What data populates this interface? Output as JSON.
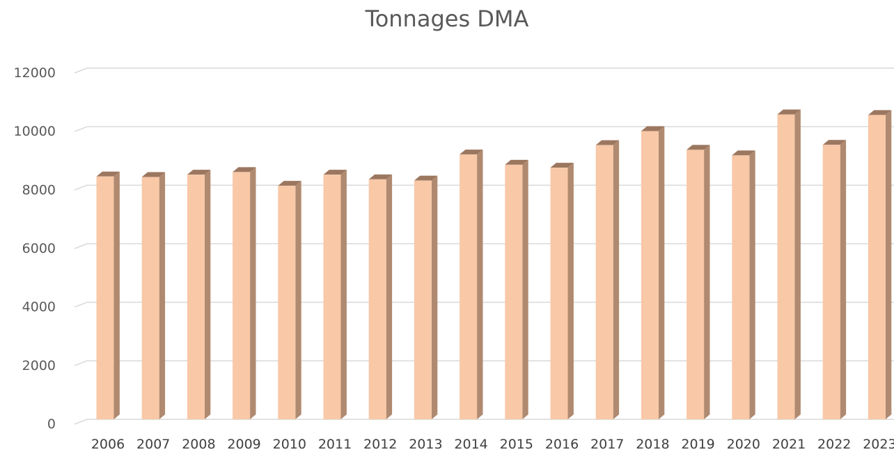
{
  "chart_data": {
    "type": "bar",
    "title": "Tonnages DMA",
    "xlabel": "",
    "ylabel": "",
    "categories": [
      "2006",
      "2007",
      "2008",
      "2009",
      "2010",
      "2011",
      "2012",
      "2013",
      "2014",
      "2015",
      "2016",
      "2017",
      "2018",
      "2019",
      "2020",
      "2021",
      "2022",
      "2023"
    ],
    "values": [
      8300,
      8280,
      8360,
      8450,
      7980,
      8360,
      8200,
      8160,
      9050,
      8700,
      8600,
      9370,
      9850,
      9210,
      9020,
      10420,
      9380,
      10400
    ],
    "ylim": [
      0,
      12000
    ],
    "yticks": [
      "0",
      "2000",
      "4000",
      "6000",
      "8000",
      "10000",
      "12000"
    ],
    "grid": true,
    "legend": "none",
    "colors": {
      "bar_front": "#f8c8a7",
      "bar_side": "#b08a70",
      "bar_top": "#9c7760",
      "grid": "#d9d9d9"
    }
  }
}
